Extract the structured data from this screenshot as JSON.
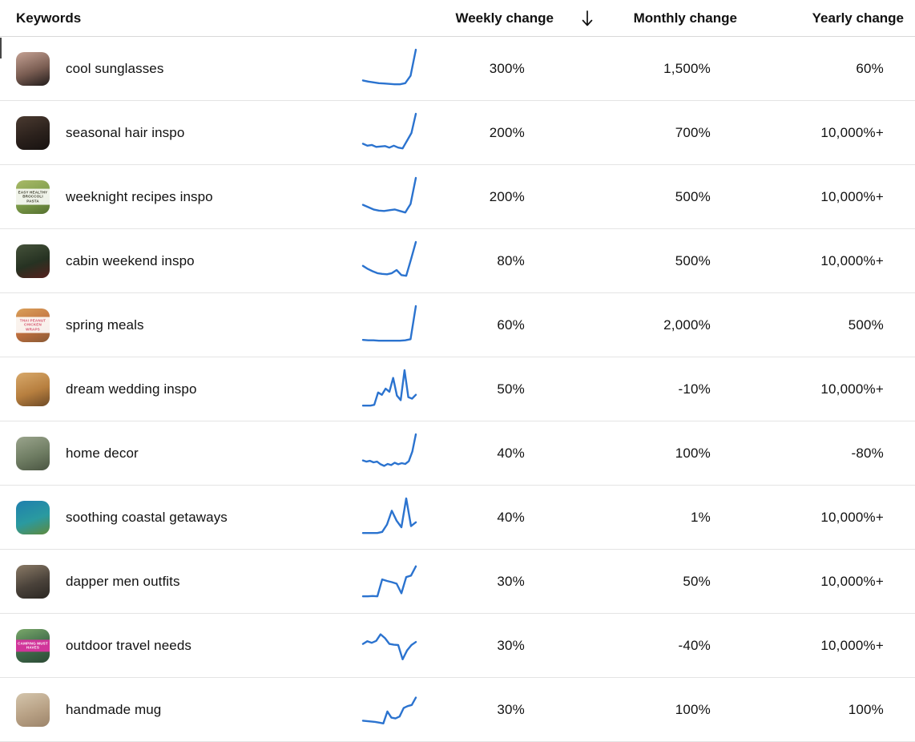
{
  "styles": {
    "accent_blue": "#2b73cf",
    "divider": "#e4e4e4",
    "text": "#111111"
  },
  "header": {
    "keywords": "Keywords",
    "weekly": "Weekly change",
    "monthly": "Monthly change",
    "yearly": "Yearly change",
    "sort_icon": "arrow-down",
    "sort_direction": "descending"
  },
  "rows": [
    {
      "keyword": "cool sunglasses",
      "weekly": "300%",
      "monthly": "1,500%",
      "yearly": "60%",
      "spark": [
        0.2,
        0.17,
        0.15,
        0.13,
        0.12,
        0.11,
        0.1,
        0.1,
        0.13,
        0.32,
        1.0
      ],
      "thumb": {
        "desc": "person wearing sunglasses",
        "colors": [
          "#c5a294",
          "#7a5d52",
          "#221c1b"
        ],
        "label": "",
        "label_bg": "",
        "label_color": ""
      }
    },
    {
      "keyword": "seasonal hair inspo",
      "weekly": "200%",
      "monthly": "700%",
      "yearly": "10,000%+",
      "spark": [
        0.22,
        0.17,
        0.19,
        0.14,
        0.15,
        0.16,
        0.12,
        0.17,
        0.12,
        0.1,
        0.3,
        0.5,
        1.0
      ],
      "thumb": {
        "desc": "dark-haired person portrait",
        "colors": [
          "#4a3a30",
          "#2b211c",
          "#171210"
        ],
        "label": "",
        "label_bg": "",
        "label_color": ""
      }
    },
    {
      "keyword": "weeknight recipes inspo",
      "weekly": "200%",
      "monthly": "500%",
      "yearly": "10,000%+",
      "spark": [
        0.3,
        0.24,
        0.18,
        0.15,
        0.14,
        0.16,
        0.18,
        0.14,
        0.1,
        0.32,
        1.0
      ],
      "thumb": {
        "desc": "green pasta dish collage",
        "colors": [
          "#a9ba68",
          "#7d9c4a",
          "#55702f"
        ],
        "label": "EASY HEALTHY BROCCOLI PASTA",
        "label_bg": "rgba(255,255,255,0.88)",
        "label_color": "#3a3a2a"
      }
    },
    {
      "keyword": "cabin weekend inspo",
      "weekly": "80%",
      "monthly": "500%",
      "yearly": "10,000%+",
      "spark": [
        0.38,
        0.3,
        0.24,
        0.19,
        0.17,
        0.16,
        0.19,
        0.27,
        0.14,
        0.12,
        0.55,
        1.0
      ],
      "thumb": {
        "desc": "forest cabin scene with canoe",
        "colors": [
          "#45523a",
          "#263222",
          "#55201d"
        ],
        "label": "",
        "label_bg": "",
        "label_color": ""
      }
    },
    {
      "keyword": "spring meals",
      "weekly": "60%",
      "monthly": "2,000%",
      "yearly": "500%",
      "spark": [
        0.12,
        0.11,
        0.11,
        0.1,
        0.1,
        0.1,
        0.1,
        0.1,
        0.11,
        0.14,
        1.0
      ],
      "thumb": {
        "desc": "food wrap collage",
        "colors": [
          "#d9a05a",
          "#c2703f",
          "#8a5a34"
        ],
        "label": "THAI PEANUT CHICKEN WRAPS",
        "label_bg": "rgba(255,255,255,0.9)",
        "label_color": "#d4506a"
      }
    },
    {
      "keyword": "dream wedding inspo",
      "weekly": "50%",
      "monthly": "-10%",
      "yearly": "10,000%+",
      "spark": [
        0.08,
        0.08,
        0.08,
        0.1,
        0.42,
        0.36,
        0.52,
        0.44,
        0.8,
        0.34,
        0.22,
        1.0,
        0.3,
        0.26,
        0.36
      ],
      "thumb": {
        "desc": "golden wedding venue aisle",
        "colors": [
          "#d8a96b",
          "#b77f3f",
          "#6e4a26"
        ],
        "label": "",
        "label_bg": "",
        "label_color": ""
      }
    },
    {
      "keyword": "home decor",
      "weekly": "40%",
      "monthly": "100%",
      "yearly": "-80%",
      "spark": [
        0.32,
        0.29,
        0.31,
        0.27,
        0.29,
        0.22,
        0.18,
        0.23,
        0.2,
        0.26,
        0.22,
        0.25,
        0.23,
        0.3,
        0.55,
        1.0
      ],
      "thumb": {
        "desc": "plant-filled home interior",
        "colors": [
          "#9aa48c",
          "#6f7d63",
          "#4a5542"
        ],
        "label": "",
        "label_bg": "",
        "label_color": ""
      }
    },
    {
      "keyword": "soothing coastal getaways",
      "weekly": "40%",
      "monthly": "1%",
      "yearly": "10,000%+",
      "spark": [
        0.1,
        0.1,
        0.1,
        0.1,
        0.13,
        0.32,
        0.68,
        0.42,
        0.25,
        1.0,
        0.28,
        0.38
      ],
      "thumb": {
        "desc": "aerial coastal bay with island",
        "colors": [
          "#1f7fae",
          "#2a9aa0",
          "#5f8a3c"
        ],
        "label": "",
        "label_bg": "",
        "label_color": ""
      }
    },
    {
      "keyword": "dapper men outfits",
      "weekly": "30%",
      "monthly": "50%",
      "yearly": "10,000%+",
      "spark": [
        0.12,
        0.12,
        0.13,
        0.12,
        0.56,
        0.52,
        0.49,
        0.45,
        0.2,
        0.62,
        0.66,
        0.9
      ],
      "thumb": {
        "desc": "man in dark tailored suit",
        "colors": [
          "#8a7a66",
          "#4a423a",
          "#2a2622"
        ],
        "label": "",
        "label_bg": "",
        "label_color": ""
      }
    },
    {
      "keyword": "outdoor travel needs",
      "weekly": "30%",
      "monthly": "-40%",
      "yearly": "10,000%+",
      "spark": [
        0.55,
        0.62,
        0.58,
        0.63,
        0.8,
        0.7,
        0.55,
        0.53,
        0.52,
        0.15,
        0.38,
        0.52,
        0.6
      ],
      "thumb": {
        "desc": "camping gear collage",
        "colors": [
          "#7aa86a",
          "#3f6b4a",
          "#2c4a35"
        ],
        "label": "CAMPING MUST HAVES",
        "label_bg": "#d1359a",
        "label_color": "#ffffff"
      }
    },
    {
      "keyword": "handmade mug",
      "weekly": "30%",
      "monthly": "100%",
      "yearly": "100%",
      "spark": [
        0.22,
        0.21,
        0.2,
        0.19,
        0.17,
        0.15,
        0.46,
        0.3,
        0.28,
        0.33,
        0.55,
        0.6,
        0.63,
        0.82
      ],
      "thumb": {
        "desc": "beige ceramic handmade mugs",
        "colors": [
          "#d4c5ac",
          "#b8a185",
          "#9c846a"
        ],
        "label": "",
        "label_bg": "",
        "label_color": ""
      }
    }
  ]
}
